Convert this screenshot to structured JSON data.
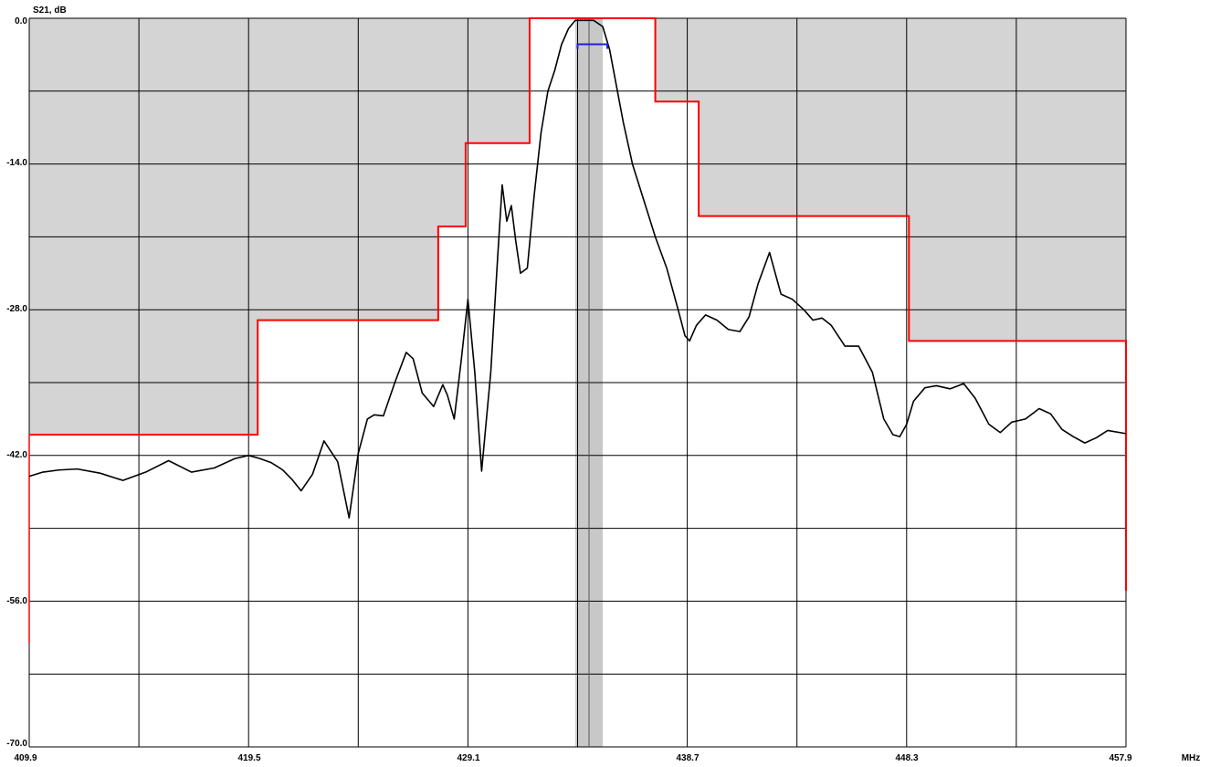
{
  "chart_data": {
    "type": "line",
    "title": "",
    "ylabel": "S21, dB",
    "xlabel": "MHz",
    "xlim": [
      409.9,
      457.9
    ],
    "ylim": [
      -70.0,
      0.0
    ],
    "x_tick_labels": [
      "409.9",
      "419.5",
      "429.1",
      "438.7",
      "448.3",
      "457.9"
    ],
    "y_tick_labels": [
      "0.0",
      "-14.0",
      "-28.0",
      "-42.0",
      "-56.0",
      "-70.0"
    ],
    "grid": true,
    "colors": {
      "plot_bg": "#ffffff",
      "forbidden_region": "#d4d4d4",
      "mask_line": "#ff0000",
      "trace": "#000000",
      "passband_band": "#c8c8c8",
      "marker": "#1f1fe0",
      "grid": "#000000"
    },
    "passband_band_mhz": [
      433.8,
      435.0
    ],
    "marker_line_mhz": 434.4,
    "passband_marker": {
      "x_range": [
        433.9,
        435.2
      ],
      "y": -2.5
    },
    "upper_mask": {
      "x": [
        409.9,
        419.9,
        419.9,
        427.8,
        427.8,
        429.0,
        429.0,
        431.8,
        431.8,
        437.3,
        437.3,
        439.2,
        439.2,
        448.4,
        448.4,
        457.9,
        457.9
      ],
      "y": [
        -40.0,
        -40.0,
        -29.0,
        -29.0,
        -20.0,
        -20.0,
        -12.0,
        -12.0,
        0.0,
        0.0,
        -8.0,
        -8.0,
        -19.0,
        -19.0,
        -31.0,
        -31.0,
        -55.0
      ]
    },
    "lower_mask_left": {
      "x": [
        409.9,
        409.9
      ],
      "y": [
        -60.0,
        -40.0
      ]
    },
    "series": [
      {
        "x": [
          409.9,
          410.5,
          411.2,
          412.0,
          413.0,
          414.0,
          415.0,
          416.0,
          417.0,
          418.0,
          418.9,
          419.5,
          420.0,
          420.5,
          421.0,
          421.4,
          421.8,
          422.3,
          422.8,
          423.4,
          423.9,
          424.3,
          424.7,
          425.0,
          425.4,
          425.9,
          426.4,
          426.7,
          427.1,
          427.6,
          428.0,
          428.2,
          428.5,
          428.8,
          429.1,
          429.4,
          429.7,
          430.1,
          430.4,
          430.6,
          430.8,
          431.0,
          431.2,
          431.4,
          431.7,
          432.0,
          432.3,
          432.6,
          432.9,
          433.2,
          433.5,
          433.8,
          434.2,
          434.6,
          435.0,
          435.3,
          435.6,
          435.9,
          436.3,
          436.8,
          437.3,
          437.8,
          438.3,
          438.6,
          438.8,
          439.1,
          439.5,
          440.0,
          440.5,
          441.0,
          441.4,
          441.8,
          442.3,
          442.8,
          443.3,
          443.8,
          444.2,
          444.6,
          445.0,
          445.6,
          446.2,
          446.8,
          447.3,
          447.7,
          448.0,
          448.3,
          448.6,
          449.1,
          449.6,
          450.2,
          450.8,
          451.3,
          451.9,
          452.4,
          452.9,
          453.5,
          454.1,
          454.6,
          455.1,
          455.6,
          456.1,
          456.6,
          457.1,
          457.9
        ],
        "y": [
          -44.0,
          -43.6,
          -43.4,
          -43.3,
          -43.7,
          -44.4,
          -43.6,
          -42.5,
          -43.6,
          -43.2,
          -42.3,
          -42.0,
          -42.3,
          -42.7,
          -43.4,
          -44.3,
          -45.4,
          -43.8,
          -40.6,
          -42.6,
          -48.0,
          -41.8,
          -38.5,
          -38.1,
          -38.2,
          -35.0,
          -32.1,
          -32.7,
          -36.0,
          -37.3,
          -35.2,
          -36.2,
          -38.5,
          -33.0,
          -27.0,
          -34.0,
          -43.5,
          -34.0,
          -23.0,
          -16.0,
          -19.5,
          -18.0,
          -21.5,
          -24.5,
          -24.0,
          -17.0,
          -11.0,
          -7.0,
          -5.0,
          -2.5,
          -1.0,
          -0.2,
          -0.2,
          -0.2,
          -0.8,
          -3.0,
          -6.5,
          -10.0,
          -14.0,
          -17.5,
          -21.0,
          -24.0,
          -28.0,
          -30.5,
          -31.0,
          -29.5,
          -28.5,
          -29.0,
          -29.9,
          -30.1,
          -28.7,
          -25.5,
          -22.5,
          -26.5,
          -27.0,
          -28.0,
          -29.0,
          -28.8,
          -29.5,
          -31.5,
          -31.5,
          -34.0,
          -38.5,
          -40.0,
          -40.2,
          -39.0,
          -36.8,
          -35.5,
          -35.3,
          -35.6,
          -35.1,
          -36.5,
          -39.0,
          -39.8,
          -38.8,
          -38.5,
          -37.5,
          -38.0,
          -39.5,
          -40.2,
          -40.8,
          -40.3,
          -39.6,
          -39.9
        ]
      }
    ]
  }
}
